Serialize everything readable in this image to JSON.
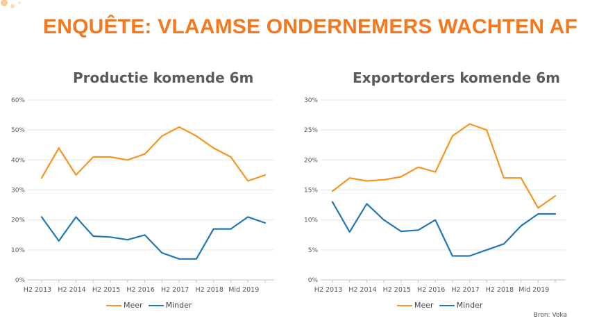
{
  "page": {
    "title": "ENQUÊTE: VLAAMSE ONDERNEMERS WACHTEN AF",
    "source": "Bron: Voka"
  },
  "colors": {
    "meer": "#f7941d",
    "minder": "#1f77b4",
    "title": "#f4781e"
  },
  "chart_data": [
    {
      "type": "line",
      "title": "Productie komende 6m",
      "x": [
        "H2 2013",
        "H1 2014",
        "H2 2014",
        "H1 2015",
        "H2 2015",
        "H1 2016",
        "H2 2016",
        "H1 2017",
        "H2 2017",
        "H1 2018",
        "H2 2018",
        "H1 2019",
        "Mid 2019",
        "H2 2019"
      ],
      "tick_labels": [
        "H2 2013",
        "H2 2014",
        "H2 2015",
        "H2 2016",
        "H2 2017",
        "H2 2018",
        "Mid 2019"
      ],
      "y_ticks": [
        "0%",
        "10%",
        "20%",
        "30%",
        "40%",
        "50%",
        "60%"
      ],
      "ylim": [
        0,
        60
      ],
      "y_unit": "%",
      "grid": true,
      "legend": "bottom",
      "series": [
        {
          "name": "Meer",
          "color": "#f7941d",
          "values": [
            34,
            44,
            35,
            41,
            41,
            40,
            42,
            48,
            51,
            48,
            44,
            41,
            33,
            35
          ]
        },
        {
          "name": "Minder",
          "color": "#1f77b4",
          "values": [
            21,
            13,
            21,
            14.6,
            14.3,
            13.4,
            15,
            9,
            7,
            7,
            17,
            17,
            21,
            19
          ]
        }
      ]
    },
    {
      "type": "line",
      "title": "Exportorders komende 6m",
      "x": [
        "H2 2013",
        "H1 2014",
        "H2 2014",
        "H1 2015",
        "H2 2015",
        "H1 2016",
        "H2 2016",
        "H1 2017",
        "H2 2017",
        "H1 2018",
        "H2 2018",
        "H1 2019",
        "Mid 2019",
        "H2 2019"
      ],
      "tick_labels": [
        "H2 2013",
        "H2 2014",
        "H2 2015",
        "H2 2016",
        "H2 2017",
        "H2 2018",
        "Mid 2019"
      ],
      "y_ticks": [
        "0%",
        "5%",
        "10%",
        "15%",
        "20%",
        "25%",
        "30%"
      ],
      "ylim": [
        0,
        30
      ],
      "y_unit": "%",
      "grid": true,
      "legend": "bottom",
      "series": [
        {
          "name": "Meer",
          "color": "#f7941d",
          "values": [
            14.8,
            17,
            16.5,
            16.7,
            17.2,
            18.8,
            18,
            24,
            26,
            25,
            17,
            17,
            12,
            14
          ]
        },
        {
          "name": "Minder",
          "color": "#1f77b4",
          "values": [
            13,
            8,
            12.7,
            10,
            8.1,
            8.3,
            10,
            4,
            4,
            5,
            6,
            9,
            11,
            11
          ]
        }
      ]
    }
  ]
}
